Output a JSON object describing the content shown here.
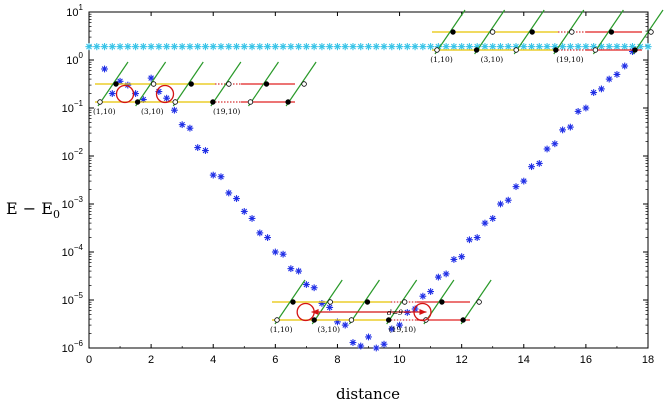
{
  "chart_data": {
    "type": "scatter",
    "xlabel": "distance",
    "ylabel_main": "E − E",
    "ylabel_sub": "0",
    "xlim": [
      0,
      18
    ],
    "ylim_log10": [
      -6,
      1
    ],
    "y_scale": "log",
    "x_ticks": [
      "0",
      "2",
      "4",
      "6",
      "8",
      "10",
      "12",
      "14",
      "16",
      "18"
    ],
    "y_ticks": [
      {
        "exp": 1,
        "base": "10",
        "sup": "1"
      },
      {
        "exp": 0,
        "base": "10",
        "sup": "0"
      },
      {
        "exp": -1,
        "base": "10",
        "sup": "−1"
      },
      {
        "exp": -2,
        "base": "10",
        "sup": "−2"
      },
      {
        "exp": -3,
        "base": "10",
        "sup": "−3"
      },
      {
        "exp": -4,
        "base": "10",
        "sup": "−4"
      },
      {
        "exp": -5,
        "base": "10",
        "sup": "−5"
      },
      {
        "exp": -6,
        "base": "10",
        "sup": "−6"
      }
    ],
    "grid": false,
    "series": [
      {
        "marker": "asterisk",
        "color": "#1f2ee6",
        "points": [
          [
            0.5,
            0.65
          ],
          [
            0.75,
            0.2
          ],
          [
            1.0,
            0.36
          ],
          [
            1.25,
            0.3
          ],
          [
            1.5,
            0.2
          ],
          [
            1.75,
            0.15
          ],
          [
            2.0,
            0.42
          ],
          [
            2.25,
            0.22
          ],
          [
            2.5,
            0.16
          ],
          [
            2.75,
            0.09
          ],
          [
            3.0,
            0.045
          ],
          [
            3.25,
            0.038
          ],
          [
            3.5,
            0.015
          ],
          [
            3.75,
            0.013
          ],
          [
            4.0,
            0.004
          ],
          [
            4.25,
            0.0037
          ],
          [
            4.5,
            0.0017
          ],
          [
            4.75,
            0.0013
          ],
          [
            5.0,
            0.0007
          ],
          [
            5.25,
            0.0005
          ],
          [
            5.5,
            0.00025
          ],
          [
            5.75,
            0.0002
          ],
          [
            6.0,
            0.0001
          ],
          [
            6.25,
            9e-05
          ],
          [
            6.5,
            4.5e-05
          ],
          [
            6.75,
            4e-05
          ],
          [
            7.0,
            2.1e-05
          ],
          [
            7.25,
            1.8e-05
          ],
          [
            7.5,
            8.5e-06
          ],
          [
            7.75,
            7e-06
          ],
          [
            8.0,
            3.5e-06
          ],
          [
            8.25,
            3e-06
          ],
          [
            8.5,
            1.3e-06
          ],
          [
            8.75,
            1.1e-06
          ],
          [
            9.0,
            1.7e-06
          ],
          [
            9.25,
            1e-06
          ],
          [
            9.5,
            1.2e-06
          ],
          [
            9.75,
            2.5e-06
          ],
          [
            10.0,
            3e-06
          ],
          [
            10.25,
            5.5e-06
          ],
          [
            10.5,
            6.5e-06
          ],
          [
            10.75,
            1.2e-05
          ],
          [
            11.0,
            1.5e-05
          ],
          [
            11.25,
            3e-05
          ],
          [
            11.5,
            3.5e-05
          ],
          [
            11.75,
            7e-05
          ],
          [
            12.0,
            8e-05
          ],
          [
            12.25,
            0.00018
          ],
          [
            12.5,
            0.0002
          ],
          [
            12.75,
            0.0004
          ],
          [
            13.0,
            0.0005
          ],
          [
            13.25,
            0.001
          ],
          [
            13.5,
            0.0012
          ],
          [
            13.75,
            0.0023
          ],
          [
            14.0,
            0.003
          ],
          [
            14.25,
            0.006
          ],
          [
            14.5,
            0.007
          ],
          [
            14.75,
            0.014
          ],
          [
            15.0,
            0.018
          ],
          [
            15.25,
            0.035
          ],
          [
            15.5,
            0.04
          ],
          [
            15.75,
            0.085
          ],
          [
            16.0,
            0.1
          ],
          [
            16.25,
            0.21
          ],
          [
            16.5,
            0.25
          ],
          [
            16.75,
            0.4
          ],
          [
            17.0,
            0.5
          ],
          [
            17.25,
            0.75
          ],
          [
            17.5,
            1.5
          ]
        ]
      },
      {
        "marker": "asterisk",
        "color": "#38c4e8",
        "y_constant": 1.9,
        "x_start": 0,
        "x_end": 18,
        "x_step": 0.25
      }
    ],
    "insets": [
      {
        "position": "upper-left",
        "labels": [
          "(1,10)",
          "(3,10)",
          "(19,10)"
        ]
      },
      {
        "position": "upper-right",
        "labels": [
          "(1,10)",
          "(3,10)",
          "(19,10)"
        ]
      },
      {
        "position": "bottom-center",
        "labels": [
          "(1,10)",
          "(3,10)",
          "(19,10)"
        ],
        "annotation": "d=9"
      }
    ]
  }
}
